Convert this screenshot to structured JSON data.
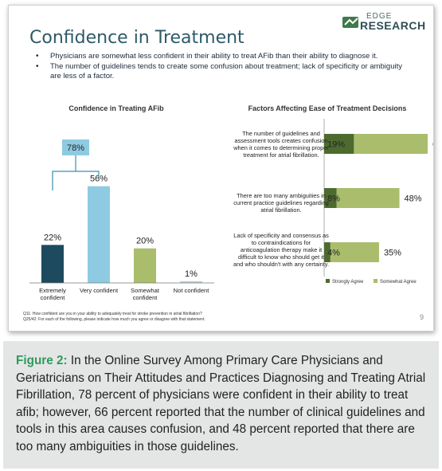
{
  "logo": {
    "top": "EDGE",
    "bottom": "RESEARCH",
    "mark_color": "#3f7a4a"
  },
  "slide": {
    "title": "Confidence in Treatment",
    "bullets": [
      "Physicians are somewhat less confident in their ability to treat AFib than their ability to diagnose it.",
      "The number of guidelines tends to create some confusion about treatment; lack of specificity or ambiguity are less of a factor."
    ],
    "page_number": "9",
    "footnotes": [
      "Q11: How confident are you in your ability to adequately treat for stroke prevention in atrial fibrillation?",
      "Q25/42: For each of the following, please indicate how much you agree or disagree with that statement."
    ]
  },
  "chart_data": [
    {
      "type": "bar",
      "title": "Confidence in Treating AFib",
      "categories": [
        "Extremely confident",
        "Very confident",
        "Somewhat confident",
        "Not confident"
      ],
      "values": [
        22,
        56,
        20,
        1
      ],
      "value_labels": [
        "22%",
        "56%",
        "20%",
        "1%"
      ],
      "colors": [
        "#1d4a5e",
        "#8ecbe3",
        "#a9bd6c",
        "#bdd0d8"
      ],
      "ylim": [
        0,
        60
      ],
      "grid": false,
      "annotation": {
        "text": "78%",
        "spans": [
          "Extremely confident",
          "Very confident"
        ]
      }
    },
    {
      "type": "bar",
      "orientation": "horizontal",
      "stacked": true,
      "title": "Factors Affecting Ease of Treatment Decisions",
      "categories": [
        "The number of guidelines and assessment tools creates confusion when it comes to determining proper treatment for atrial fibrillation.",
        "There are too many ambiguities in current practice guidelines regarding atrial fibrillation.",
        "Lack of specificity and consensus as to contraindications for anticoagulation therapy make it difficult to know who should get it and who shouldn't with any certainty."
      ],
      "series": [
        {
          "name": "Strongly Agree",
          "values": [
            19,
            8,
            4
          ],
          "labels": [
            "19%",
            "8%",
            "4%"
          ],
          "color": "#4e6b2f"
        },
        {
          "name": "Somewhat Agree",
          "values": [
            47,
            40,
            31
          ],
          "color": "#a9bd6c"
        }
      ],
      "total_labels": [
        "66%",
        "48%",
        "35%"
      ],
      "xlim": [
        0,
        70
      ],
      "grid": false,
      "legend": "bottom-right"
    }
  ],
  "caption": {
    "label": "Figure 2:",
    "text": " In the Online Survey Among Primary Care Physicians and Geriatricians on Their Attitudes and Practices Diagnosing and Treating Atrial Fibrillation, 78 percent of physicians were confident in their ability to treat afib; however, 66 percent reported that the number of clinical guidelines and tools in this area causes confusion, and 48 percent reported that there are too many ambiguities in those guidelines."
  }
}
